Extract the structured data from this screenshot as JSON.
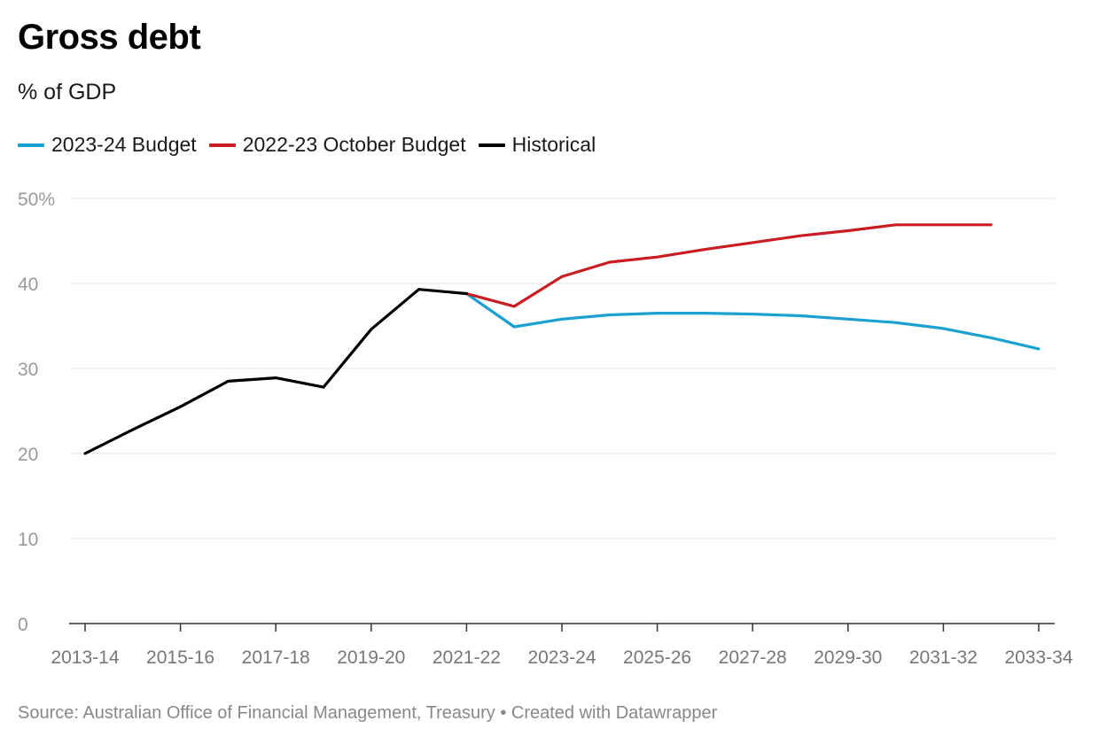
{
  "title": "Gross debt",
  "subtitle": "% of GDP",
  "source_text": "Source: Australian Office of Financial Management, Treasury • Created with Datawrapper",
  "chart_data": {
    "type": "line",
    "title": "Gross debt",
    "ylabel": "% of GDP",
    "xlabel": "",
    "ylim": [
      0,
      50
    ],
    "yticks": [
      0,
      10,
      20,
      30,
      40,
      50
    ],
    "ytick_labels": [
      "0",
      "10",
      "20",
      "30",
      "40",
      "50%"
    ],
    "x": [
      "2013-14",
      "2014-15",
      "2015-16",
      "2016-17",
      "2017-18",
      "2018-19",
      "2019-20",
      "2020-21",
      "2021-22",
      "2022-23",
      "2023-24",
      "2024-25",
      "2025-26",
      "2026-27",
      "2027-28",
      "2028-29",
      "2029-30",
      "2030-31",
      "2031-32",
      "2032-33",
      "2033-34"
    ],
    "xtick_labels": [
      "2013-14",
      "2015-16",
      "2017-18",
      "2019-20",
      "2021-22",
      "2023-24",
      "2025-26",
      "2027-28",
      "2029-30",
      "2031-32",
      "2033-34"
    ],
    "grid": true,
    "legend_position": "top-left",
    "series": [
      {
        "name": "2023-24 Budget",
        "color": "#1aa1d1",
        "values": [
          null,
          null,
          null,
          null,
          null,
          null,
          null,
          null,
          38.8,
          34.9,
          35.8,
          36.3,
          36.5,
          36.5,
          36.4,
          36.2,
          35.8,
          35.4,
          34.7,
          33.6,
          32.3
        ]
      },
      {
        "name": "2022-23 October Budget",
        "color": "#c91d21",
        "values": [
          null,
          null,
          null,
          null,
          null,
          null,
          null,
          null,
          38.8,
          37.3,
          40.8,
          42.5,
          43.1,
          44.0,
          44.8,
          45.6,
          46.2,
          46.9,
          46.9,
          46.9,
          null
        ]
      },
      {
        "name": "Historical",
        "color": "#000000",
        "values": [
          20.0,
          22.8,
          25.5,
          28.5,
          28.9,
          27.8,
          34.6,
          39.3,
          38.8,
          null,
          null,
          null,
          null,
          null,
          null,
          null,
          null,
          null,
          null,
          null,
          null
        ]
      }
    ]
  }
}
